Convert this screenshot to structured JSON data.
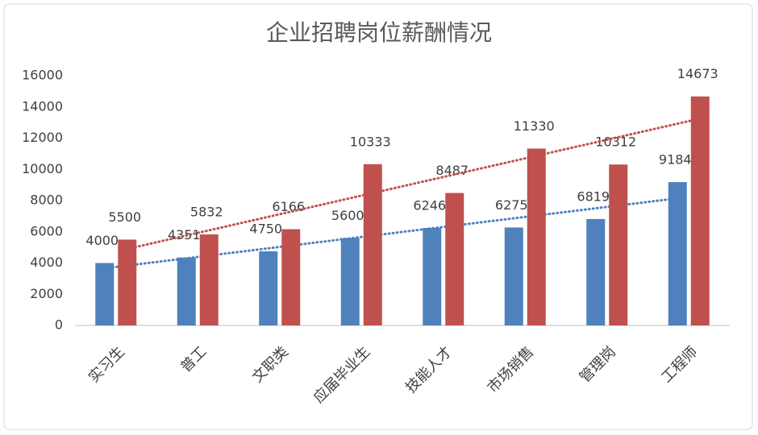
{
  "chart_data": {
    "type": "bar",
    "title": "企业招聘岗位薪酬情况",
    "categories": [
      "实习生",
      "普工",
      "文职类",
      "应届毕业生",
      "技能人才",
      "市场销售",
      "管理岗",
      "工程师"
    ],
    "series": [
      {
        "color": "#4f81bd",
        "values": [
          4000,
          4351,
          4750,
          5600,
          6246,
          6275,
          6819,
          9184
        ]
      },
      {
        "color": "#c0504d",
        "values": [
          5500,
          5832,
          6166,
          10333,
          8487,
          11330,
          10312,
          14673
        ]
      }
    ],
    "ylim": [
      0,
      16000
    ],
    "yticks": [
      0,
      2000,
      4000,
      6000,
      8000,
      10000,
      12000,
      14000,
      16000
    ],
    "grid": false,
    "trendline": true
  }
}
